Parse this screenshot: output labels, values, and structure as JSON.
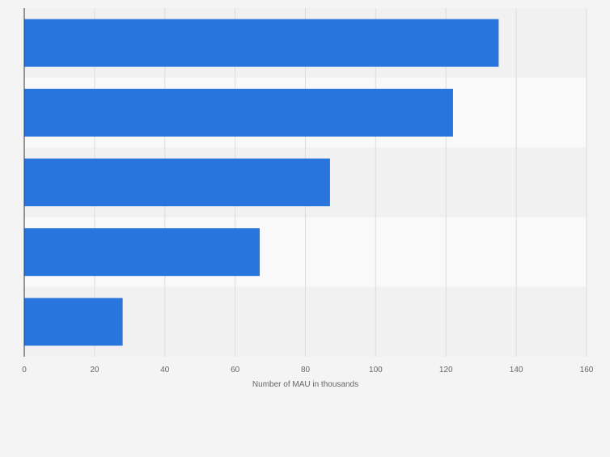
{
  "chart_data": {
    "type": "bar",
    "orientation": "horizontal",
    "categories": [
      "",
      "",
      "",
      "",
      ""
    ],
    "values": [
      135,
      122,
      87,
      67,
      28
    ],
    "title": "",
    "xlabel": "Number of MAU in thousands",
    "ylabel": "",
    "xlim": [
      0,
      160
    ],
    "x_ticks": [
      "0",
      "20",
      "40",
      "60",
      "80",
      "100",
      "120",
      "140",
      "160"
    ],
    "grid": true,
    "legend": "none",
    "colors": {
      "bar": "#2876dd",
      "band_a": "#f1f1f2",
      "band_b": "#f9f9f9",
      "gridline": "#dcdcdc",
      "axis": "#333333",
      "tick_text": "#666666"
    }
  }
}
